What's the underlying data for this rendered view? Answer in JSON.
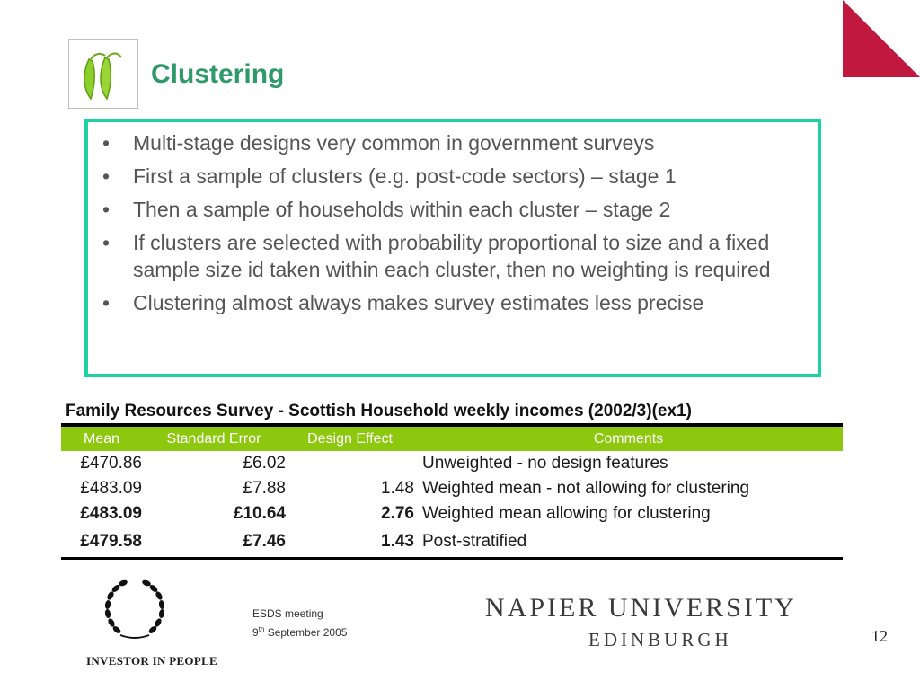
{
  "colors": {
    "title": "#2e9a6a",
    "box_border": "#1fcfa5",
    "table_header": "#8dc80f",
    "corner": "#c0183f"
  },
  "slide": {
    "title": "Clustering",
    "page_number": "12"
  },
  "bullets": [
    "Multi-stage designs very common in government surveys",
    "First a sample of clusters (e.g. post-code sectors) – stage 1",
    "Then a sample of households within each cluster – stage 2",
    "If clusters are selected with probability proportional to size and a fixed sample size id taken within each cluster, then no weighting is required",
    "Clustering almost always makes survey estimates less precise"
  ],
  "bullet_char": "•",
  "table": {
    "caption": "Family Resources Survey - Scottish Household weekly incomes (2002/3)(ex1)",
    "headers": [
      "Mean",
      "Standard Error",
      "Design Effect",
      "Comments"
    ],
    "rows": [
      {
        "mean": "£470.86",
        "se": "£6.02",
        "deff": "",
        "comment": "Unweighted - no design features"
      },
      {
        "mean": "£483.09",
        "se": "£7.88",
        "deff": "1.48",
        "comment": "Weighted mean - not allowing for clustering"
      },
      {
        "mean": "£483.09",
        "se": "£10.64",
        "deff": "2.76",
        "comment": "Weighted mean allowing for clustering"
      },
      {
        "mean": "£479.58",
        "se": "£7.46",
        "deff": "1.43",
        "comment": "Post-stratified"
      }
    ]
  },
  "footer": {
    "iip_label": "INVESTOR IN PEOPLE",
    "meeting_line1": "ESDS meeting",
    "meeting_day": "9",
    "meeting_sup": "th",
    "meeting_rest": " September 2005",
    "university_name": "NAPIER UNIVERSITY",
    "university_city": "EDINBURGH"
  }
}
